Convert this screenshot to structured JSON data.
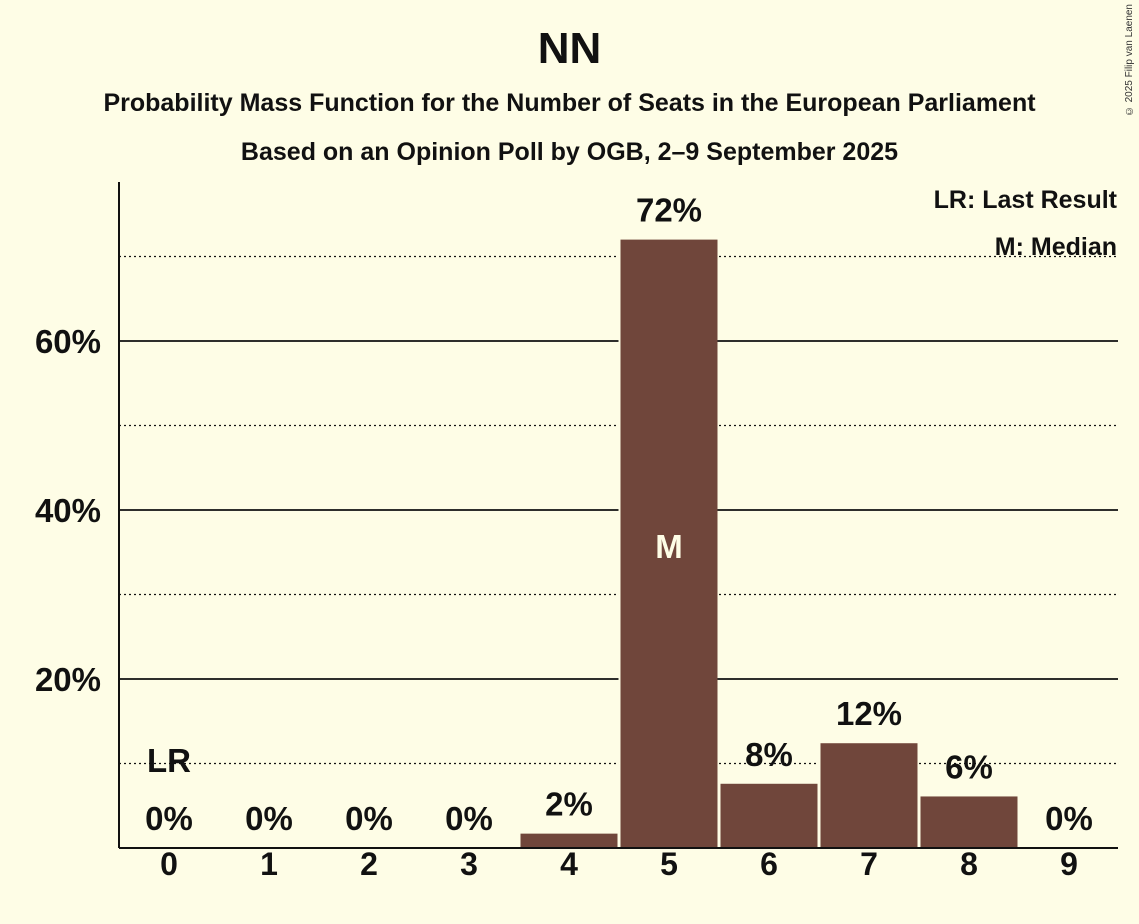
{
  "copyright": "© 2025 Filip van Laenen",
  "chart_data": {
    "type": "bar",
    "title": "NN",
    "subtitle": "Probability Mass Function for the Number of Seats in the European Parliament",
    "subtitle2": "Based on an Opinion Poll by OGB, 2–9 September 2025",
    "categories": [
      "0",
      "1",
      "2",
      "3",
      "4",
      "5",
      "6",
      "7",
      "8",
      "9"
    ],
    "values": [
      0,
      0,
      0,
      0,
      1.7,
      72,
      7.6,
      12.4,
      6.1,
      0
    ],
    "data_labels": [
      "0%",
      "0%",
      "0%",
      "0%",
      "2%",
      "72%",
      "8%",
      "12%",
      "6%",
      "0%"
    ],
    "ylim": [
      0,
      80
    ],
    "yticks": [
      {
        "value": 20,
        "label": "20%"
      },
      {
        "value": 40,
        "label": "40%"
      },
      {
        "value": 60,
        "label": "60%"
      }
    ],
    "dotted_gridlines": [
      10,
      30,
      50,
      70
    ],
    "last_result": {
      "category": "0",
      "label": "LR"
    },
    "median": {
      "category": "5",
      "label": "M"
    },
    "legend": {
      "placement": "top-right",
      "entries": [
        "LR: Last Result",
        "M: Median"
      ]
    },
    "bar_color": "#70463b",
    "grid": true
  }
}
